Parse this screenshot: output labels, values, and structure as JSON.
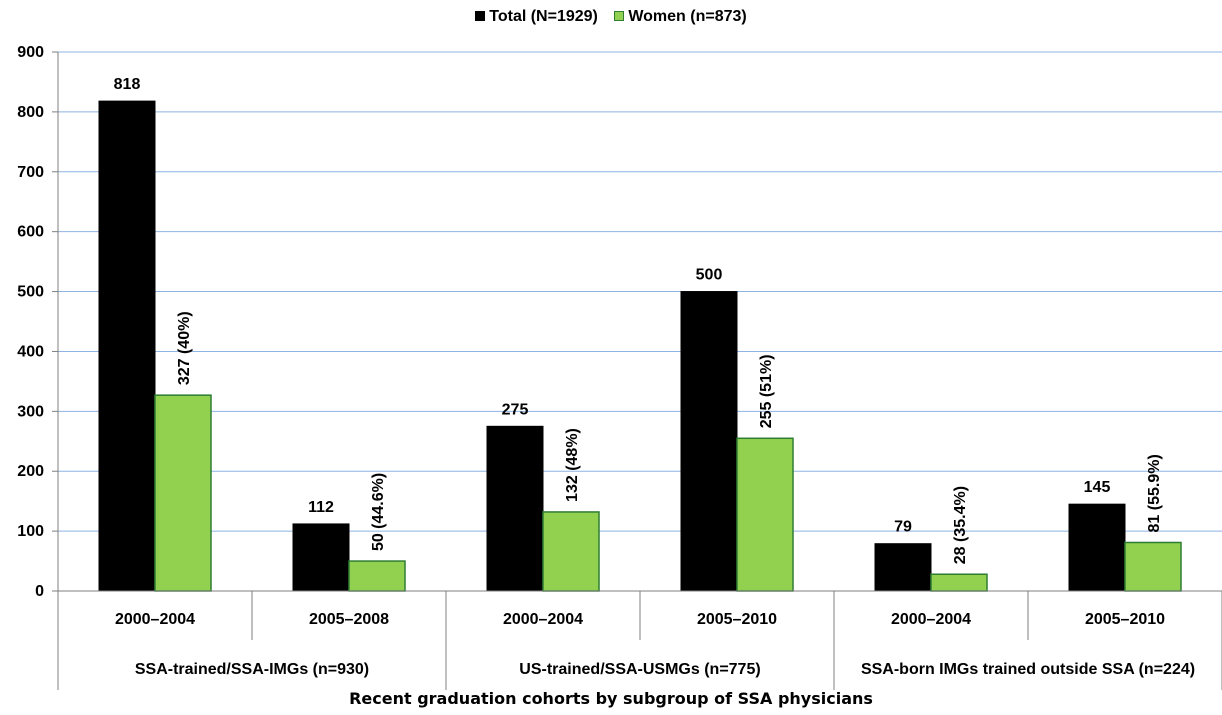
{
  "chart_data": {
    "type": "bar",
    "title": "",
    "xlabel": "Recent graduation cohorts by subgroup of SSA physicians",
    "ylabel": "",
    "ylim": [
      0,
      900
    ],
    "yticks": [
      0,
      100,
      200,
      300,
      400,
      500,
      600,
      700,
      800,
      900
    ],
    "grid": true,
    "legend_position": "top-center",
    "categories": [
      "2000–2004",
      "2005–2008",
      "2000–2004",
      "2005–2010",
      "2000–2004",
      "2005–2010"
    ],
    "groups": [
      {
        "label": "SSA-trained/SSA-IMGs (n=930)",
        "span": 2
      },
      {
        "label": "US-trained/SSA-USMGs (n=775)",
        "span": 2
      },
      {
        "label": "SSA-born IMGs trained outside SSA (n=224)",
        "span": 2
      }
    ],
    "series": [
      {
        "name": "Total (N=1929)",
        "color": "#000000",
        "values": [
          818,
          112,
          275,
          500,
          79,
          145
        ],
        "labels": [
          "818",
          "112",
          "275",
          "500",
          "79",
          "145"
        ]
      },
      {
        "name": "Women (n=873)",
        "color": "#92d050",
        "values": [
          327,
          50,
          132,
          255,
          28,
          81
        ],
        "labels": [
          "327 (40%)",
          "50 (44.6%)",
          "132 (48%)",
          "255 (51%)",
          "28 (35.4%)",
          "81 (55.9%)"
        ]
      }
    ]
  }
}
